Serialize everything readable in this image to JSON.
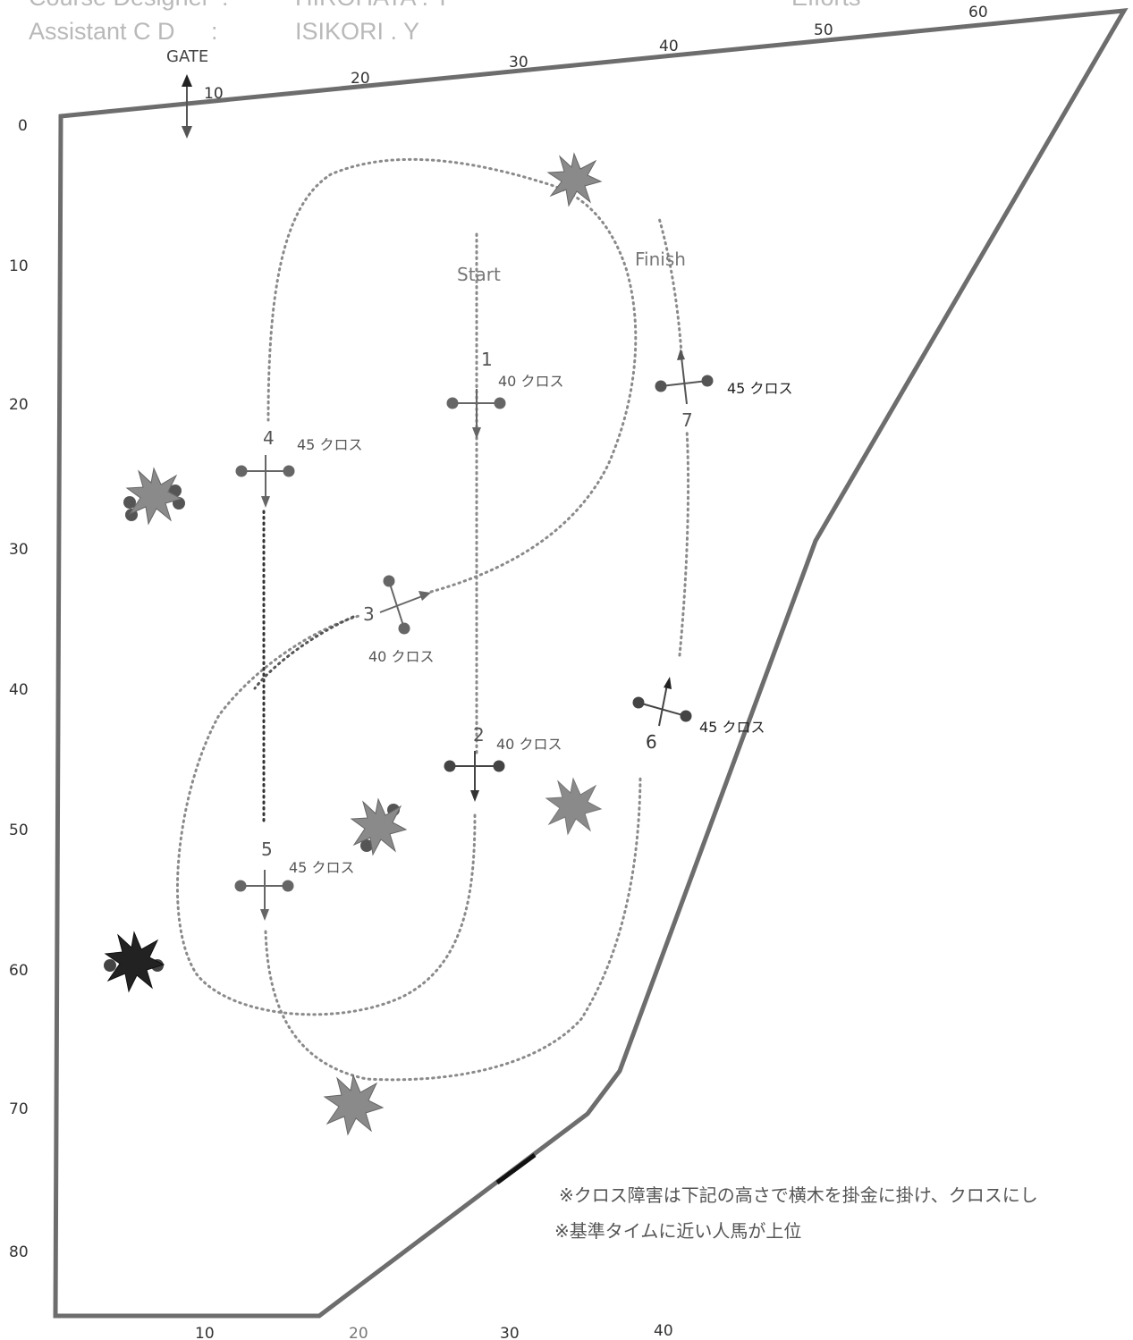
{
  "header": {
    "designer_label": "Course Designer",
    "designer_colon": ":",
    "designer_name": "HIROHATA . Y",
    "assistant_label": "Assistant C D",
    "assistant_colon": ":",
    "assistant_name": "ISIKORI . Y",
    "efforts_label": "Efforts"
  },
  "gate_label": "GATE",
  "top_axis": [
    "10",
    "20",
    "30",
    "40",
    "50",
    "60"
  ],
  "bottom_axis": [
    "10",
    "20",
    "30",
    "40"
  ],
  "left_axis": [
    "0",
    "10",
    "20",
    "30",
    "40",
    "50",
    "60",
    "70",
    "80"
  ],
  "start_label": "Start",
  "finish_label": "Finish",
  "jumps": [
    {
      "number": "1",
      "label": "40 クロス"
    },
    {
      "number": "2",
      "label": "40 クロス"
    },
    {
      "number": "3",
      "label": "40 クロス"
    },
    {
      "number": "4",
      "label": "45 クロス"
    },
    {
      "number": "5",
      "label": "45 クロス"
    },
    {
      "number": "6",
      "label": "45 クロス"
    },
    {
      "number": "7",
      "label": "45 クロス"
    }
  ],
  "notes": [
    "※クロス障害は下記の高さで横木を掛金に掛け、クロスにし",
    "※基準タイムに近い人馬が上位"
  ],
  "colors": {
    "arena_border": "#6d6d6d",
    "route": "#8a8a8a",
    "jump_pole": "#666666",
    "decoration": "#8a8a8a"
  }
}
